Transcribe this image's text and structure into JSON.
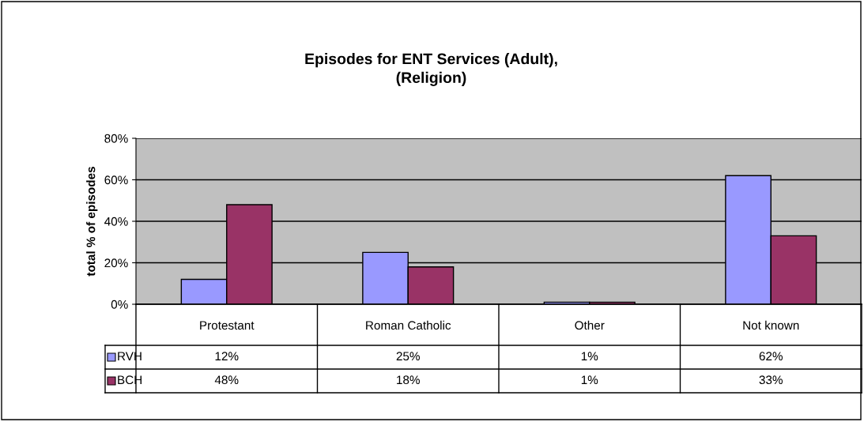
{
  "chart_data": {
    "type": "bar",
    "title": "Episodes for ENT Services (Adult),\n(Religion)",
    "ylabel": "total % of episodes",
    "categories": [
      "Protestant",
      "Roman Catholic",
      "Other",
      "Not known"
    ],
    "series": [
      {
        "name": "RVH",
        "color": "#9999ff",
        "values": [
          12,
          25,
          1,
          62
        ],
        "value_labels": [
          "12%",
          "25%",
          "1%",
          "62%"
        ]
      },
      {
        "name": "BCH",
        "color": "#993366",
        "values": [
          48,
          18,
          1,
          33
        ],
        "value_labels": [
          "48%",
          "18%",
          "1%",
          "33%"
        ]
      }
    ],
    "ylim": [
      0,
      80
    ],
    "yticks": [
      {
        "value": 0,
        "label": "0%"
      },
      {
        "value": 20,
        "label": "20%"
      },
      {
        "value": 40,
        "label": "40%"
      },
      {
        "value": 60,
        "label": "60%"
      },
      {
        "value": 80,
        "label": "80%"
      }
    ],
    "grid": "y",
    "legend": "bottom",
    "data_labels": true
  }
}
